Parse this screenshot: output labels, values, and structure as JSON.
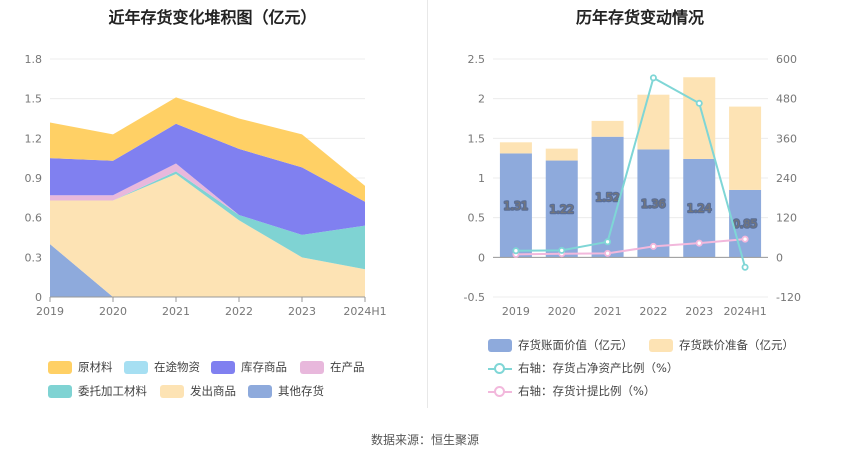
{
  "source": "数据来源：恒生聚源",
  "left_chart": {
    "title": "近年存货变化堆积图（亿元）",
    "categories": [
      "2019",
      "2020",
      "2021",
      "2022",
      "2023",
      "2024H1"
    ],
    "y_ticks": [
      "0",
      "0.3",
      "0.6",
      "0.9",
      "1.2",
      "1.5",
      "1.8"
    ],
    "legend": [
      "原材料",
      "在途物资",
      "库存商品",
      "在产品",
      "委托加工材料",
      "发出商品",
      "其他存货"
    ]
  },
  "right_chart": {
    "title": "历年存货变动情况",
    "categories": [
      "2019",
      "2020",
      "2021",
      "2022",
      "2023",
      "2024H1"
    ],
    "y_left_ticks": [
      "-0.5",
      "0",
      "0.5",
      "1",
      "1.5",
      "2",
      "2.5"
    ],
    "y_right_ticks": [
      "-120",
      "0",
      "120",
      "240",
      "360",
      "480",
      "600"
    ],
    "bar_labels": [
      "1.31",
      "1.22",
      "1.52",
      "1.36",
      "1.24",
      "0.85"
    ],
    "legend": [
      "存货账面价值（亿元）",
      "存货跌价准备（亿元）",
      "右轴：存货占净资产比例（%）",
      "右轴：存货计提比例（%）"
    ]
  },
  "chart_data": [
    {
      "type": "area",
      "title": "近年存货变化堆积图（亿元）",
      "categories": [
        "2019",
        "2020",
        "2021",
        "2022",
        "2023",
        "2024H1"
      ],
      "ylim": [
        0,
        1.8
      ],
      "stacked": true,
      "series": [
        {
          "name": "其他存货",
          "color": "#8eaadc",
          "values": [
            0.4,
            0.0,
            0.0,
            0.0,
            0.0,
            0.0
          ]
        },
        {
          "name": "发出商品",
          "color": "#fde3b4",
          "values": [
            0.33,
            0.73,
            0.93,
            0.58,
            0.3,
            0.21
          ]
        },
        {
          "name": "委托加工材料",
          "color": "#7fd3d3",
          "values": [
            0.0,
            0.0,
            0.02,
            0.04,
            0.17,
            0.33
          ]
        },
        {
          "name": "在产品",
          "color": "#e8b8dc",
          "values": [
            0.04,
            0.04,
            0.06,
            0.0,
            0.0,
            0.0
          ]
        },
        {
          "name": "库存商品",
          "color": "#8080f0",
          "values": [
            0.28,
            0.26,
            0.3,
            0.5,
            0.51,
            0.18
          ]
        },
        {
          "name": "在途物资",
          "color": "#a6dff2",
          "values": [
            0.0,
            0.0,
            0.0,
            0.0,
            0.0,
            0.0
          ]
        },
        {
          "name": "原材料",
          "color": "#ffd065",
          "values": [
            0.27,
            0.2,
            0.2,
            0.23,
            0.25,
            0.12
          ]
        }
      ]
    },
    {
      "type": "bar",
      "title": "历年存货变动情况",
      "categories": [
        "2019",
        "2020",
        "2021",
        "2022",
        "2023",
        "2024H1"
      ],
      "ylim": [
        -0.5,
        2.5
      ],
      "y2lim": [
        -120,
        600
      ],
      "stacked": true,
      "series": [
        {
          "name": "存货账面价值（亿元）",
          "color": "#8eaadc",
          "values": [
            1.31,
            1.22,
            1.52,
            1.36,
            1.24,
            0.85
          ]
        },
        {
          "name": "存货跌价准备（亿元）",
          "color": "#fde3b4",
          "values": [
            0.14,
            0.15,
            0.2,
            0.69,
            1.03,
            1.05
          ]
        },
        {
          "name": "右轴：存货占净资产比例（%）",
          "type": "line",
          "axis": "right",
          "color": "#7fd6d6",
          "values": [
            20,
            21,
            47,
            543,
            466,
            -30
          ]
        },
        {
          "name": "右轴：存货计提比例（%）",
          "type": "line",
          "axis": "right",
          "color": "#f2b8dc",
          "values": [
            9,
            11,
            12,
            33,
            43,
            55
          ]
        }
      ]
    }
  ]
}
